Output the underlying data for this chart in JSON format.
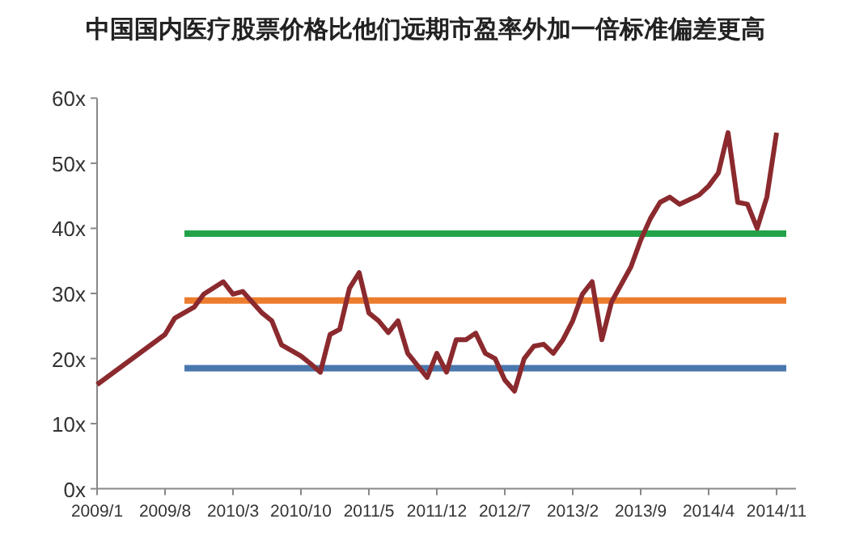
{
  "chart_data": {
    "type": "line",
    "title": "中国国内医疗股票价格比他们远期市盈率外加一倍标准偏差更高",
    "xlim": [
      "2009-01",
      "2015-01"
    ],
    "xticks": [
      {
        "value": "2009-01",
        "label": "2009/1"
      },
      {
        "value": "2009-08",
        "label": "2009/8"
      },
      {
        "value": "2010-03",
        "label": "2010/3"
      },
      {
        "value": "2010-10",
        "label": "2010/10"
      },
      {
        "value": "2011-05",
        "label": "2011/5"
      },
      {
        "value": "2011-12",
        "label": "2011/12"
      },
      {
        "value": "2012-07",
        "label": "2012/7"
      },
      {
        "value": "2013-02",
        "label": "2013/2"
      },
      {
        "value": "2013-09",
        "label": "2013/9"
      },
      {
        "value": "2014-04",
        "label": "2014/4"
      },
      {
        "value": "2014-11",
        "label": "2014/11"
      }
    ],
    "ylim": [
      0,
      60
    ],
    "yticks": [
      {
        "value": 0,
        "label": "0x"
      },
      {
        "value": 10,
        "label": "10x"
      },
      {
        "value": 20,
        "label": "20x"
      },
      {
        "value": 30,
        "label": "30x"
      },
      {
        "value": 40,
        "label": "40x"
      },
      {
        "value": 50,
        "label": "50x"
      },
      {
        "value": 60,
        "label": "60x"
      }
    ],
    "grid": false,
    "series": [
      {
        "color": "#4a78ad",
        "x": [
          "2009-10",
          "2014-12"
        ],
        "values": [
          18.5,
          18.5
        ]
      },
      {
        "color": "#ec7d2e",
        "x": [
          "2009-10",
          "2014-12"
        ],
        "values": [
          28.9,
          28.9
        ]
      },
      {
        "color": "#22a34a",
        "x": [
          "2009-10",
          "2014-12"
        ],
        "values": [
          39.2,
          39.2
        ]
      },
      {
        "color": "#8b2a2e",
        "x": [
          "2009-01",
          "2009-08",
          "2009-09",
          "2009-11",
          "2009-12",
          "2010-02",
          "2010-03",
          "2010-04",
          "2010-06",
          "2010-07",
          "2010-08",
          "2010-10",
          "2010-11",
          "2010-12",
          "2011-01",
          "2011-02",
          "2011-03",
          "2011-04",
          "2011-05",
          "2011-06",
          "2011-07",
          "2011-08",
          "2011-09",
          "2011-11",
          "2011-12",
          "2012-01",
          "2012-02",
          "2012-03",
          "2012-04",
          "2012-05",
          "2012-06",
          "2012-07",
          "2012-08",
          "2012-09",
          "2012-10",
          "2012-11",
          "2012-12",
          "2013-01",
          "2013-02",
          "2013-03",
          "2013-04",
          "2013-05",
          "2013-06",
          "2013-08",
          "2013-09",
          "2013-10",
          "2013-11",
          "2013-12",
          "2014-01",
          "2014-03",
          "2014-04",
          "2014-05",
          "2014-06",
          "2014-07",
          "2014-08",
          "2014-09",
          "2014-10",
          "2014-11"
        ],
        "values": [
          16,
          23.7,
          26.2,
          27.9,
          29.9,
          31.8,
          29.9,
          30.3,
          27,
          25.8,
          22.1,
          20.4,
          19.2,
          17.9,
          23.7,
          24.5,
          30.8,
          33.2,
          27,
          25.8,
          24,
          25.8,
          20.8,
          17.1,
          20.8,
          17.9,
          22.9,
          22.9,
          23.9,
          20.8,
          20,
          16.7,
          15,
          20,
          21.9,
          22.2,
          20.8,
          22.9,
          25.8,
          29.9,
          31.8,
          22.9,
          28.7,
          34.1,
          38.2,
          41.5,
          44,
          44.8,
          43.7,
          45.1,
          46.5,
          48.5,
          54.7,
          44,
          43.7,
          40,
          44.8,
          54.7
        ]
      }
    ]
  }
}
